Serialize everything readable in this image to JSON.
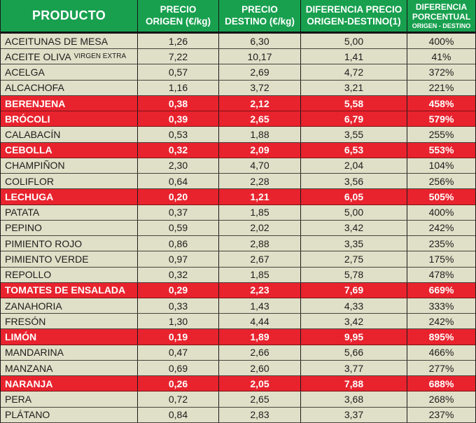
{
  "colors": {
    "header_green": "#18a04f",
    "row_beige": "#e0dfc8",
    "highlight_red": "#e8232e",
    "border_dark": "#1a1a1a",
    "header_text": "#ffffff",
    "body_text": "#1d1d1b"
  },
  "header": {
    "product": "PRODUCTO",
    "origin_line1": "PRECIO",
    "origin_line2": "ORIGEN (€/kg)",
    "destination_line1": "PRECIO",
    "destination_line2": "DESTINO (€/kg)",
    "difference_line1": "DIFERENCIA PRECIO",
    "difference_line2": "ORIGEN-DESTINO(1)",
    "percent_line1": "DIFERENCIA",
    "percent_line2": "PORCENTUAL",
    "percent_line3": "ORIGEN - DESTINO"
  },
  "chart_data": {
    "type": "table",
    "title": "Precios origen-destino de productos agrícolas",
    "columns": [
      "PRODUCTO",
      "PRECIO ORIGEN (€/kg)",
      "PRECIO DESTINO (€/kg)",
      "DIFERENCIA PRECIO ORIGEN-DESTINO(1)",
      "DIFERENCIA PORCENTUAL ORIGEN - DESTINO"
    ],
    "highlight_meaning": "rows highlighted in red",
    "rows": [
      {
        "product": "ACEITUNAS DE MESA",
        "suffix": "",
        "origin": "1,26",
        "destination": "6,30",
        "difference": "5,00",
        "percent": "400%",
        "highlighted": false
      },
      {
        "product": "ACEITE OLIVA",
        "suffix": "VIRGEN EXTRA",
        "origin": "7,22",
        "destination": "10,17",
        "difference": "1,41",
        "percent": "41%",
        "highlighted": false
      },
      {
        "product": "ACELGA",
        "suffix": "",
        "origin": "0,57",
        "destination": "2,69",
        "difference": "4,72",
        "percent": "372%",
        "highlighted": false
      },
      {
        "product": "ALCACHOFA",
        "suffix": "",
        "origin": "1,16",
        "destination": "3,72",
        "difference": "3,21",
        "percent": "221%",
        "highlighted": false
      },
      {
        "product": "BERENJENA",
        "suffix": "",
        "origin": "0,38",
        "destination": "2,12",
        "difference": "5,58",
        "percent": "458%",
        "highlighted": true
      },
      {
        "product": "BRÓCOLI",
        "suffix": "",
        "origin": "0,39",
        "destination": "2,65",
        "difference": "6,79",
        "percent": "579%",
        "highlighted": true
      },
      {
        "product": "CALABACÍN",
        "suffix": "",
        "origin": "0,53",
        "destination": "1,88",
        "difference": "3,55",
        "percent": "255%",
        "highlighted": false
      },
      {
        "product": "CEBOLLA",
        "suffix": "",
        "origin": "0,32",
        "destination": "2,09",
        "difference": "6,53",
        "percent": "553%",
        "highlighted": true
      },
      {
        "product": "CHAMPIÑON",
        "suffix": "",
        "origin": "2,30",
        "destination": "4,70",
        "difference": "2,04",
        "percent": "104%",
        "highlighted": false
      },
      {
        "product": "COLIFLOR",
        "suffix": "",
        "origin": "0,64",
        "destination": "2,28",
        "difference": "3,56",
        "percent": "256%",
        "highlighted": false
      },
      {
        "product": "LECHUGA",
        "suffix": "",
        "origin": "0,20",
        "destination": "1,21",
        "difference": "6,05",
        "percent": "505%",
        "highlighted": true
      },
      {
        "product": "PATATA",
        "suffix": "",
        "origin": "0,37",
        "destination": "1,85",
        "difference": "5,00",
        "percent": "400%",
        "highlighted": false
      },
      {
        "product": "PEPINO",
        "suffix": "",
        "origin": "0,59",
        "destination": "2,02",
        "difference": "3,42",
        "percent": "242%",
        "highlighted": false
      },
      {
        "product": "PIMIENTO ROJO",
        "suffix": "",
        "origin": "0,86",
        "destination": "2,88",
        "difference": "3,35",
        "percent": "235%",
        "highlighted": false
      },
      {
        "product": "PIMIENTO VERDE",
        "suffix": "",
        "origin": "0,97",
        "destination": "2,67",
        "difference": "2,75",
        "percent": "175%",
        "highlighted": false
      },
      {
        "product": "REPOLLO",
        "suffix": "",
        "origin": "0,32",
        "destination": "1,85",
        "difference": "5,78",
        "percent": "478%",
        "highlighted": false
      },
      {
        "product": "TOMATES DE ENSALADA",
        "suffix": "",
        "origin": "0,29",
        "destination": "2,23",
        "difference": "7,69",
        "percent": "669%",
        "highlighted": true
      },
      {
        "product": "ZANAHORIA",
        "suffix": "",
        "origin": "0,33",
        "destination": "1,43",
        "difference": "4,33",
        "percent": "333%",
        "highlighted": false
      },
      {
        "product": "FRESÓN",
        "suffix": "",
        "origin": "1,30",
        "destination": "4,44",
        "difference": "3,42",
        "percent": "242%",
        "highlighted": false
      },
      {
        "product": "LIMÓN",
        "suffix": "",
        "origin": "0,19",
        "destination": "1,89",
        "difference": "9,95",
        "percent": "895%",
        "highlighted": true
      },
      {
        "product": "MANDARINA",
        "suffix": "",
        "origin": "0,47",
        "destination": "2,66",
        "difference": "5,66",
        "percent": "466%",
        "highlighted": false
      },
      {
        "product": "MANZANA",
        "suffix": "",
        "origin": "0,69",
        "destination": "2,60",
        "difference": "3,77",
        "percent": "277%",
        "highlighted": false
      },
      {
        "product": "NARANJA",
        "suffix": "",
        "origin": "0,26",
        "destination": "2,05",
        "difference": "7,88",
        "percent": "688%",
        "highlighted": true
      },
      {
        "product": "PERA",
        "suffix": "",
        "origin": "0,72",
        "destination": "2,65",
        "difference": "3,68",
        "percent": "268%",
        "highlighted": false
      },
      {
        "product": "PLÁTANO",
        "suffix": "",
        "origin": "0,84",
        "destination": "2,83",
        "difference": "3,37",
        "percent": "237%",
        "highlighted": false
      }
    ]
  }
}
